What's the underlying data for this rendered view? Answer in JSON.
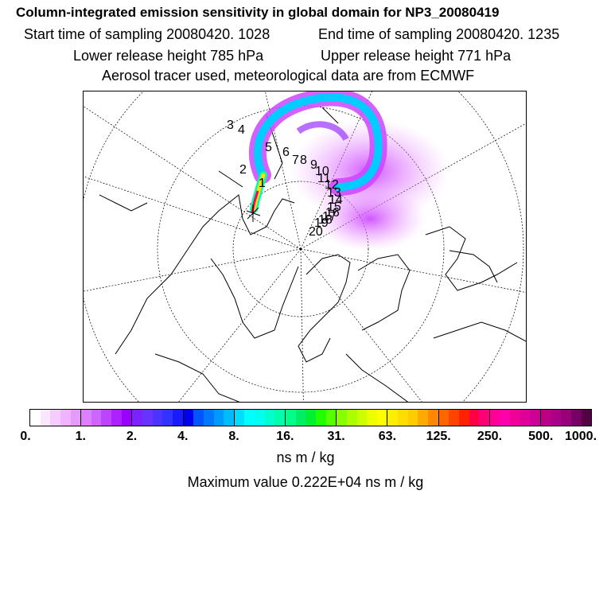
{
  "header": {
    "title": "Column-integrated emission sensitivity in global domain for NP3_20080419",
    "start": "Start time of sampling 20080420.  1028",
    "end": "End time of sampling 20080420.  1235",
    "lower": "Lower release height  785 hPa",
    "upper": "Upper release height  771 hPa",
    "tracer": "Aerosol tracer used, meteorological data are from ECMWF"
  },
  "map": {
    "projection": "north-polar-stereographic",
    "track_labels": [
      "1",
      "2",
      "3",
      "4",
      "5",
      "6",
      "7",
      "8",
      "9",
      "10",
      "11",
      "12",
      "13",
      "14",
      "15",
      "16",
      "17",
      "18",
      "19",
      "20"
    ]
  },
  "legend": {
    "tick_labels": [
      "0.",
      "1.",
      "2.",
      "4.",
      "8.",
      "16.",
      "31.",
      "63.",
      "125.",
      "250.",
      "500.",
      "1000."
    ],
    "units": "ns m / kg",
    "colors": [
      "#ffffff",
      "#fbe6ff",
      "#f5ccff",
      "#efb3ff",
      "#e699ff",
      "#dd80ff",
      "#cc66ff",
      "#bb44ff",
      "#aa22ff",
      "#9900ff",
      "#7a22ff",
      "#6633ff",
      "#4d33ff",
      "#3333ff",
      "#1a1aff",
      "#0000ee",
      "#0055ff",
      "#0077ff",
      "#0099ff",
      "#00bbff",
      "#00ddff",
      "#00ffff",
      "#00ffee",
      "#00ffcc",
      "#00ffaa",
      "#00ff88",
      "#00ee66",
      "#00ee33",
      "#22ff00",
      "#55ff00",
      "#88ff00",
      "#aaff00",
      "#ccff00",
      "#eeff00",
      "#ffff00",
      "#ffee00",
      "#ffdd00",
      "#ffcc00",
      "#ffaa00",
      "#ff8800",
      "#ff6600",
      "#ff4400",
      "#ff2200",
      "#ff0044",
      "#ff0077",
      "#ff0099",
      "#ff00aa",
      "#ee0099",
      "#dd0099",
      "#cc0099",
      "#bb0088",
      "#aa0088",
      "#990077",
      "#770066",
      "#550044"
    ]
  },
  "max_value": "Maximum value  0.222E+04 ns m / kg"
}
